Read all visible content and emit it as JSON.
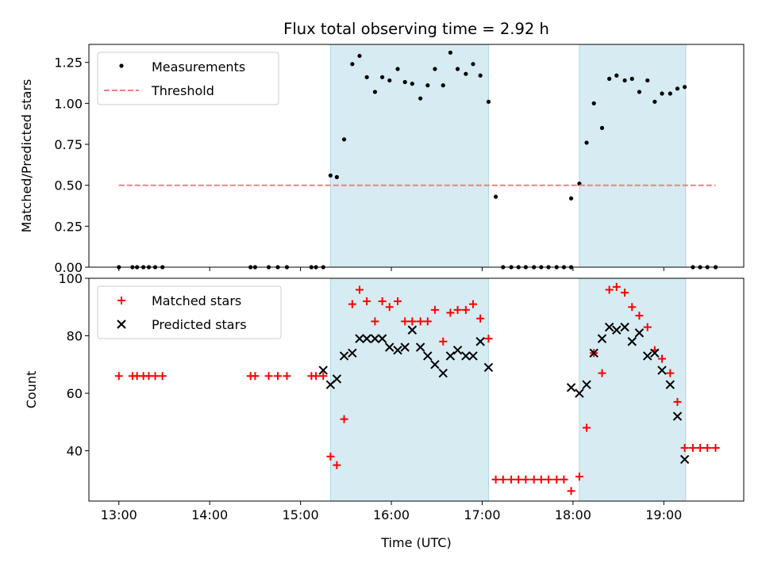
{
  "chart_data": [
    {
      "type": "scatter",
      "title": "Flux total observing time = 2.92 h",
      "ylabel": "Matched/Predicted stars",
      "xlabel": "",
      "xlim": [
        12.67,
        19.88
      ],
      "ylim": [
        0,
        1.36
      ],
      "grid": false,
      "legend_position": "top-left",
      "x_ticks": [
        13,
        14,
        15,
        16,
        17,
        18,
        19
      ],
      "y_ticks": [
        0.0,
        0.25,
        0.5,
        0.75,
        1.0,
        1.25
      ],
      "y_tick_labels": [
        "0.00",
        "0.25",
        "0.50",
        "0.75",
        "1.00",
        "1.25"
      ],
      "shaded_intervals": [
        [
          15.33,
          17.07
        ],
        [
          18.07,
          19.24
        ]
      ],
      "series": [
        {
          "name": "Measurements",
          "marker": "dot",
          "color": "#000000",
          "points": [
            [
              13.0,
              0
            ],
            [
              13.15,
              0
            ],
            [
              13.2,
              0
            ],
            [
              13.27,
              0
            ],
            [
              13.33,
              0
            ],
            [
              13.4,
              0
            ],
            [
              13.48,
              0
            ],
            [
              14.45,
              0
            ],
            [
              14.5,
              0
            ],
            [
              14.65,
              0
            ],
            [
              14.75,
              0
            ],
            [
              14.85,
              0
            ],
            [
              15.12,
              0
            ],
            [
              15.17,
              0
            ],
            [
              15.25,
              0
            ],
            [
              15.33,
              0.56
            ],
            [
              15.4,
              0.55
            ],
            [
              15.48,
              0.78
            ],
            [
              15.57,
              1.24
            ],
            [
              15.65,
              1.29
            ],
            [
              15.73,
              1.16
            ],
            [
              15.82,
              1.07
            ],
            [
              15.9,
              1.16
            ],
            [
              15.98,
              1.14
            ],
            [
              16.07,
              1.21
            ],
            [
              16.15,
              1.13
            ],
            [
              16.23,
              1.12
            ],
            [
              16.32,
              1.03
            ],
            [
              16.4,
              1.11
            ],
            [
              16.48,
              1.21
            ],
            [
              16.57,
              1.11
            ],
            [
              16.65,
              1.31
            ],
            [
              16.73,
              1.21
            ],
            [
              16.82,
              1.18
            ],
            [
              16.9,
              1.24
            ],
            [
              16.98,
              1.17
            ],
            [
              17.07,
              1.01
            ],
            [
              17.15,
              0.43
            ],
            [
              17.23,
              0
            ],
            [
              17.32,
              0
            ],
            [
              17.4,
              0
            ],
            [
              17.48,
              0
            ],
            [
              17.57,
              0
            ],
            [
              17.65,
              0
            ],
            [
              17.73,
              0
            ],
            [
              17.82,
              0
            ],
            [
              17.9,
              0
            ],
            [
              17.98,
              0
            ],
            [
              17.98,
              0.42
            ],
            [
              18.07,
              0.51
            ],
            [
              18.15,
              0.76
            ],
            [
              18.23,
              1.0
            ],
            [
              18.32,
              0.85
            ],
            [
              18.4,
              1.15
            ],
            [
              18.48,
              1.17
            ],
            [
              18.57,
              1.14
            ],
            [
              18.65,
              1.15
            ],
            [
              18.73,
              1.07
            ],
            [
              18.82,
              1.14
            ],
            [
              18.9,
              1.01
            ],
            [
              18.98,
              1.06
            ],
            [
              19.07,
              1.06
            ],
            [
              19.15,
              1.09
            ],
            [
              19.23,
              1.1
            ],
            [
              19.32,
              0
            ],
            [
              19.4,
              0
            ],
            [
              19.48,
              0
            ],
            [
              19.57,
              0
            ]
          ]
        },
        {
          "name": "Threshold",
          "marker": "dashed-line",
          "color": "#f08080",
          "points": [
            [
              13.0,
              0.5
            ],
            [
              19.57,
              0.5
            ]
          ]
        }
      ]
    },
    {
      "type": "scatter",
      "title": "",
      "ylabel": "Count",
      "xlabel": "Time (UTC)",
      "xlim": [
        12.67,
        19.88
      ],
      "ylim": [
        22.5,
        100
      ],
      "grid": false,
      "legend_position": "top-left",
      "x_ticks": [
        13,
        14,
        15,
        16,
        17,
        18,
        19
      ],
      "x_tick_labels": [
        "13:00",
        "14:00",
        "15:00",
        "16:00",
        "17:00",
        "18:00",
        "19:00"
      ],
      "y_ticks": [
        40,
        60,
        80,
        100
      ],
      "y_tick_labels": [
        "40",
        "60",
        "80",
        "100"
      ],
      "shaded_intervals": [
        [
          15.33,
          17.07
        ],
        [
          18.07,
          19.24
        ]
      ],
      "series": [
        {
          "name": "Matched stars",
          "marker": "plus",
          "color": "#ff0000",
          "points": [
            [
              13.0,
              66
            ],
            [
              13.15,
              66
            ],
            [
              13.2,
              66
            ],
            [
              13.27,
              66
            ],
            [
              13.33,
              66
            ],
            [
              13.4,
              66
            ],
            [
              13.48,
              66
            ],
            [
              14.45,
              66
            ],
            [
              14.5,
              66
            ],
            [
              14.65,
              66
            ],
            [
              14.75,
              66
            ],
            [
              14.85,
              66
            ],
            [
              15.12,
              66
            ],
            [
              15.17,
              66
            ],
            [
              15.25,
              66
            ],
            [
              15.33,
              38
            ],
            [
              15.4,
              35
            ],
            [
              15.48,
              51
            ],
            [
              15.57,
              91
            ],
            [
              15.65,
              96
            ],
            [
              15.73,
              92
            ],
            [
              15.82,
              85
            ],
            [
              15.9,
              92
            ],
            [
              15.98,
              90
            ],
            [
              16.07,
              92
            ],
            [
              16.15,
              85
            ],
            [
              16.23,
              85
            ],
            [
              16.32,
              85
            ],
            [
              16.4,
              85
            ],
            [
              16.48,
              89
            ],
            [
              16.57,
              78
            ],
            [
              16.65,
              88
            ],
            [
              16.73,
              89
            ],
            [
              16.82,
              89
            ],
            [
              16.9,
              91
            ],
            [
              16.98,
              86
            ],
            [
              17.07,
              79
            ],
            [
              17.15,
              30
            ],
            [
              17.23,
              30
            ],
            [
              17.32,
              30
            ],
            [
              17.4,
              30
            ],
            [
              17.48,
              30
            ],
            [
              17.57,
              30
            ],
            [
              17.65,
              30
            ],
            [
              17.73,
              30
            ],
            [
              17.82,
              30
            ],
            [
              17.9,
              30
            ],
            [
              17.98,
              26
            ],
            [
              18.07,
              31
            ],
            [
              18.15,
              48
            ],
            [
              18.23,
              74
            ],
            [
              18.32,
              67
            ],
            [
              18.4,
              96
            ],
            [
              18.48,
              97
            ],
            [
              18.57,
              95
            ],
            [
              18.65,
              90
            ],
            [
              18.73,
              87
            ],
            [
              18.82,
              83
            ],
            [
              18.9,
              75
            ],
            [
              18.98,
              72
            ],
            [
              19.07,
              67
            ],
            [
              19.15,
              57
            ],
            [
              19.23,
              41
            ],
            [
              19.32,
              41
            ],
            [
              19.4,
              41
            ],
            [
              19.48,
              41
            ],
            [
              19.57,
              41
            ]
          ]
        },
        {
          "name": "Predicted stars",
          "marker": "x",
          "color": "#000000",
          "points": [
            [
              15.25,
              68
            ],
            [
              15.33,
              63
            ],
            [
              15.4,
              65
            ],
            [
              15.48,
              73
            ],
            [
              15.57,
              74
            ],
            [
              15.65,
              79
            ],
            [
              15.73,
              79
            ],
            [
              15.82,
              79
            ],
            [
              15.9,
              79
            ],
            [
              15.98,
              76
            ],
            [
              16.07,
              75
            ],
            [
              16.15,
              76
            ],
            [
              16.23,
              82
            ],
            [
              16.32,
              76
            ],
            [
              16.4,
              73
            ],
            [
              16.48,
              70
            ],
            [
              16.57,
              67
            ],
            [
              16.65,
              73
            ],
            [
              16.73,
              75
            ],
            [
              16.82,
              73
            ],
            [
              16.9,
              73
            ],
            [
              16.98,
              78
            ],
            [
              17.07,
              69
            ],
            [
              17.98,
              62
            ],
            [
              18.07,
              60
            ],
            [
              18.15,
              63
            ],
            [
              18.23,
              74
            ],
            [
              18.32,
              79
            ],
            [
              18.4,
              83
            ],
            [
              18.48,
              82
            ],
            [
              18.57,
              83
            ],
            [
              18.65,
              78
            ],
            [
              18.73,
              81
            ],
            [
              18.82,
              73
            ],
            [
              18.9,
              74
            ],
            [
              18.98,
              68
            ],
            [
              19.07,
              63
            ],
            [
              19.15,
              52
            ],
            [
              19.23,
              37
            ]
          ]
        }
      ]
    }
  ]
}
